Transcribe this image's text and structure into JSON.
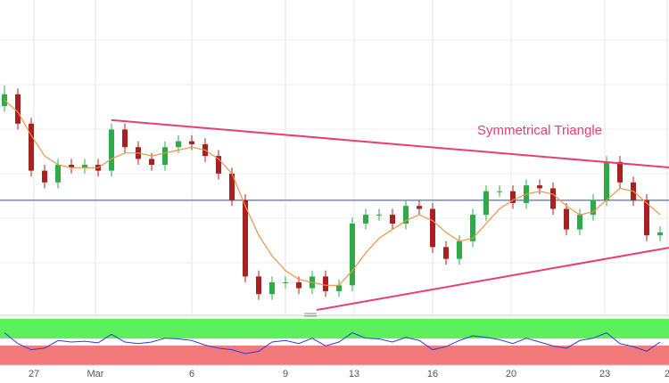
{
  "chart_data": {
    "type": "candlestick",
    "annotation": "Symmetrical Triangle",
    "ylim": [
      0,
      100
    ],
    "open": [
      70,
      74,
      64,
      48,
      44,
      50,
      49,
      50,
      48,
      62,
      56,
      52,
      50,
      56,
      58,
      57,
      53,
      47,
      38,
      12,
      6,
      10,
      10,
      8,
      12,
      7,
      9,
      30,
      33,
      33,
      30,
      36,
      35,
      22,
      18,
      24,
      33,
      41,
      41,
      37,
      43,
      42,
      35,
      28,
      33,
      38,
      51,
      44,
      38,
      26
    ],
    "high": [
      77,
      76,
      66,
      50,
      52,
      52,
      52,
      52,
      64,
      64,
      58,
      54,
      58,
      60,
      60,
      59,
      55,
      49,
      40,
      14,
      12,
      12,
      12,
      14,
      14,
      11,
      32,
      35,
      35,
      35,
      38,
      38,
      37,
      24,
      26,
      35,
      43,
      43,
      43,
      45,
      45,
      44,
      37,
      35,
      40,
      53,
      53,
      46,
      40,
      29
    ],
    "low": [
      68,
      62,
      46,
      42,
      42,
      47,
      47,
      46,
      46,
      54,
      50,
      48,
      48,
      54,
      55,
      51,
      45,
      36,
      10,
      4,
      4,
      8,
      6,
      6,
      5,
      5,
      7,
      28,
      31,
      28,
      28,
      33,
      20,
      16,
      16,
      22,
      31,
      39,
      35,
      35,
      40,
      33,
      26,
      26,
      31,
      36,
      42,
      36,
      24,
      24
    ],
    "close": [
      74,
      64,
      48,
      44,
      50,
      49,
      50,
      48,
      62,
      56,
      52,
      50,
      56,
      58,
      57,
      53,
      47,
      38,
      12,
      6,
      10,
      10,
      8,
      12,
      7,
      9,
      30,
      33,
      33,
      30,
      36,
      35,
      22,
      18,
      24,
      33,
      41,
      41,
      37,
      43,
      42,
      35,
      28,
      33,
      38,
      51,
      44,
      38,
      26,
      27
    ],
    "up_color": "#2eab48",
    "down_color": "#a82020",
    "ma": {
      "color": "#f0924a",
      "values": [
        72,
        68,
        60,
        53,
        50,
        49,
        49,
        49,
        52,
        54,
        54,
        53,
        54,
        55,
        56,
        55,
        52,
        47,
        36,
        26,
        19,
        14,
        11,
        10,
        9,
        9,
        14,
        20,
        25,
        28,
        31,
        33,
        31,
        27,
        24,
        25,
        30,
        35,
        38,
        40,
        41,
        40,
        36,
        33,
        34,
        38,
        42,
        41,
        37,
        33
      ]
    },
    "hline": {
      "value": 37.9,
      "color": "#3b4b7a"
    },
    "trendlines": [
      {
        "color": "#e83e74",
        "x": [
          8,
          49.67
        ],
        "values": [
          65.2,
          49.1
        ]
      },
      {
        "color": "#e83e74",
        "x": [
          23.33,
          49.67
        ],
        "values": [
          0.6,
          21.8
        ]
      }
    ],
    "xticks": [
      {
        "value": 2.2,
        "label": "27"
      },
      {
        "value": 6.8,
        "label": "Mar"
      },
      {
        "value": 14,
        "label": "6"
      },
      {
        "value": 21,
        "label": "9"
      },
      {
        "value": 26.13,
        "label": "13"
      },
      {
        "value": 32,
        "label": "16"
      },
      {
        "value": 37.87,
        "label": "20"
      },
      {
        "value": 44.87,
        "label": "23"
      },
      {
        "value": 49.53,
        "label": "2"
      }
    ],
    "rsi": {
      "color": "#2b3fd0",
      "ylim": [
        20,
        80
      ],
      "values": [
        62,
        48,
        40,
        42,
        52,
        50,
        51,
        49,
        60,
        50,
        48,
        50,
        55,
        54,
        52,
        46,
        42,
        40,
        35,
        38,
        50,
        52,
        48,
        55,
        45,
        50,
        62,
        55,
        54,
        50,
        56,
        52,
        40,
        44,
        52,
        58,
        56,
        53,
        48,
        55,
        50,
        45,
        42,
        52,
        55,
        62,
        48,
        44,
        38,
        50
      ]
    }
  }
}
